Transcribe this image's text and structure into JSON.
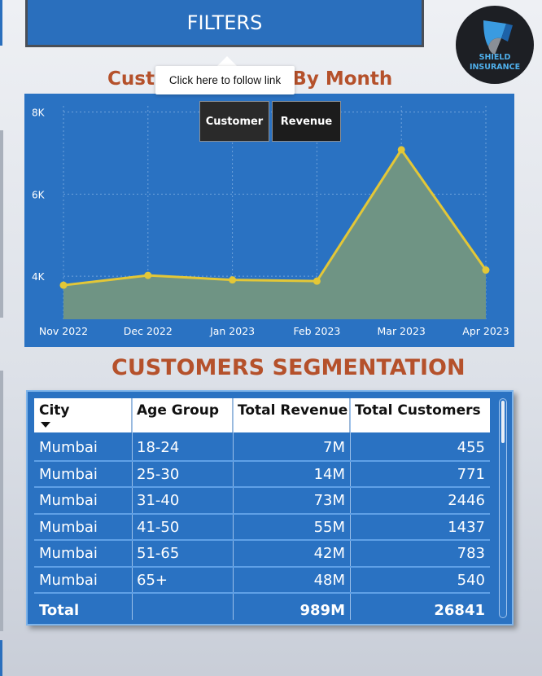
{
  "filters": {
    "label": "FILTERS"
  },
  "logo": {
    "line1": "SHIELD",
    "line2": "INSURANCE"
  },
  "chart_section": {
    "title": "Customers Trend By Month",
    "tooltip": "Click here to follow link",
    "toggles": [
      "Customer",
      "Revenue"
    ]
  },
  "chart_data": {
    "type": "area",
    "title": "Customers Trend By Month",
    "categories": [
      "Nov 2022",
      "Dec 2022",
      "Jan 2023",
      "Feb 2023",
      "Mar 2023",
      "Apr 2023"
    ],
    "series": [
      {
        "values": [
          3780,
          4020,
          3910,
          3880,
          7080,
          4150
        ]
      }
    ],
    "y_ticks": [
      "4K",
      "6K",
      "8K"
    ],
    "ylim": [
      2950,
      8150
    ],
    "grid": true,
    "colors": {
      "line": "#e3c737",
      "fill": "#6f9484",
      "background": "#2a72c2"
    }
  },
  "segmentation": {
    "title": "CUSTOMERS SEGMENTATION",
    "columns": [
      "City",
      "Age Group",
      "Total Revenue",
      "Total Customers"
    ],
    "rows": [
      [
        "Mumbai",
        "18-24",
        "7M",
        "455"
      ],
      [
        "Mumbai",
        "25-30",
        "14M",
        "771"
      ],
      [
        "Mumbai",
        "31-40",
        "73M",
        "2446"
      ],
      [
        "Mumbai",
        "41-50",
        "55M",
        "1437"
      ],
      [
        "Mumbai",
        "51-65",
        "42M",
        "783"
      ],
      [
        "Mumbai",
        "65+",
        "48M",
        "540"
      ]
    ],
    "total": [
      "Total",
      "",
      "989M",
      "26841"
    ]
  }
}
